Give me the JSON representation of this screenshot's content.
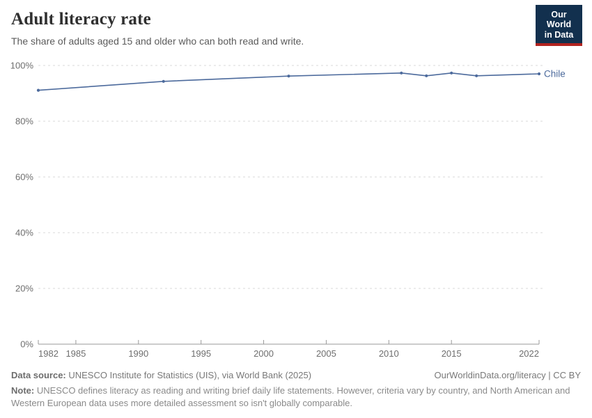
{
  "header": {
    "title": "Adult literacy rate",
    "subtitle": "The share of adults aged 15 and older who can both read and write."
  },
  "logo": {
    "line1": "Our World",
    "line2": "in Data"
  },
  "chart_data": {
    "type": "line",
    "title": "Adult literacy rate",
    "subtitle": "The share of adults aged 15 and older who can both read and write.",
    "x": [
      1982,
      1992,
      2002,
      2011,
      2013,
      2015,
      2017,
      2022
    ],
    "series": [
      {
        "name": "Chile",
        "values": [
          91.1,
          94.3,
          96.2,
          97.3,
          96.3,
          97.3,
          96.3,
          97.0
        ],
        "color": "#4C6A9C"
      }
    ],
    "x_ticks": [
      1982,
      1985,
      1990,
      1995,
      2000,
      2005,
      2010,
      2015,
      2022
    ],
    "y_ticks": [
      0,
      20,
      40,
      60,
      80,
      100
    ],
    "y_tick_suffix": "%",
    "xlim": [
      1982,
      2022
    ],
    "ylim": [
      0,
      100
    ],
    "grid": "horizontal-dashed",
    "legend_position": "line-end-label"
  },
  "colors": {
    "line": "#4C6A9C",
    "entity_label": "#4C6A9C",
    "grid": "#d9d9d9",
    "axis": "#999999",
    "tick_label": "#6e6e6e",
    "logo_bg": "#12304e",
    "logo_bar": "#b2231f"
  },
  "footer": {
    "source_label": "Data source:",
    "source_text": " UNESCO Institute for Statistics (UIS), via World Bank (2025)",
    "link_text": "OurWorldinData.org/literacy | CC BY",
    "note_label": "Note:",
    "note_text": " UNESCO defines literacy as reading and writing brief daily life statements. However, criteria vary by country, and North American and Western European data uses more detailed assessment so isn't globally comparable."
  }
}
